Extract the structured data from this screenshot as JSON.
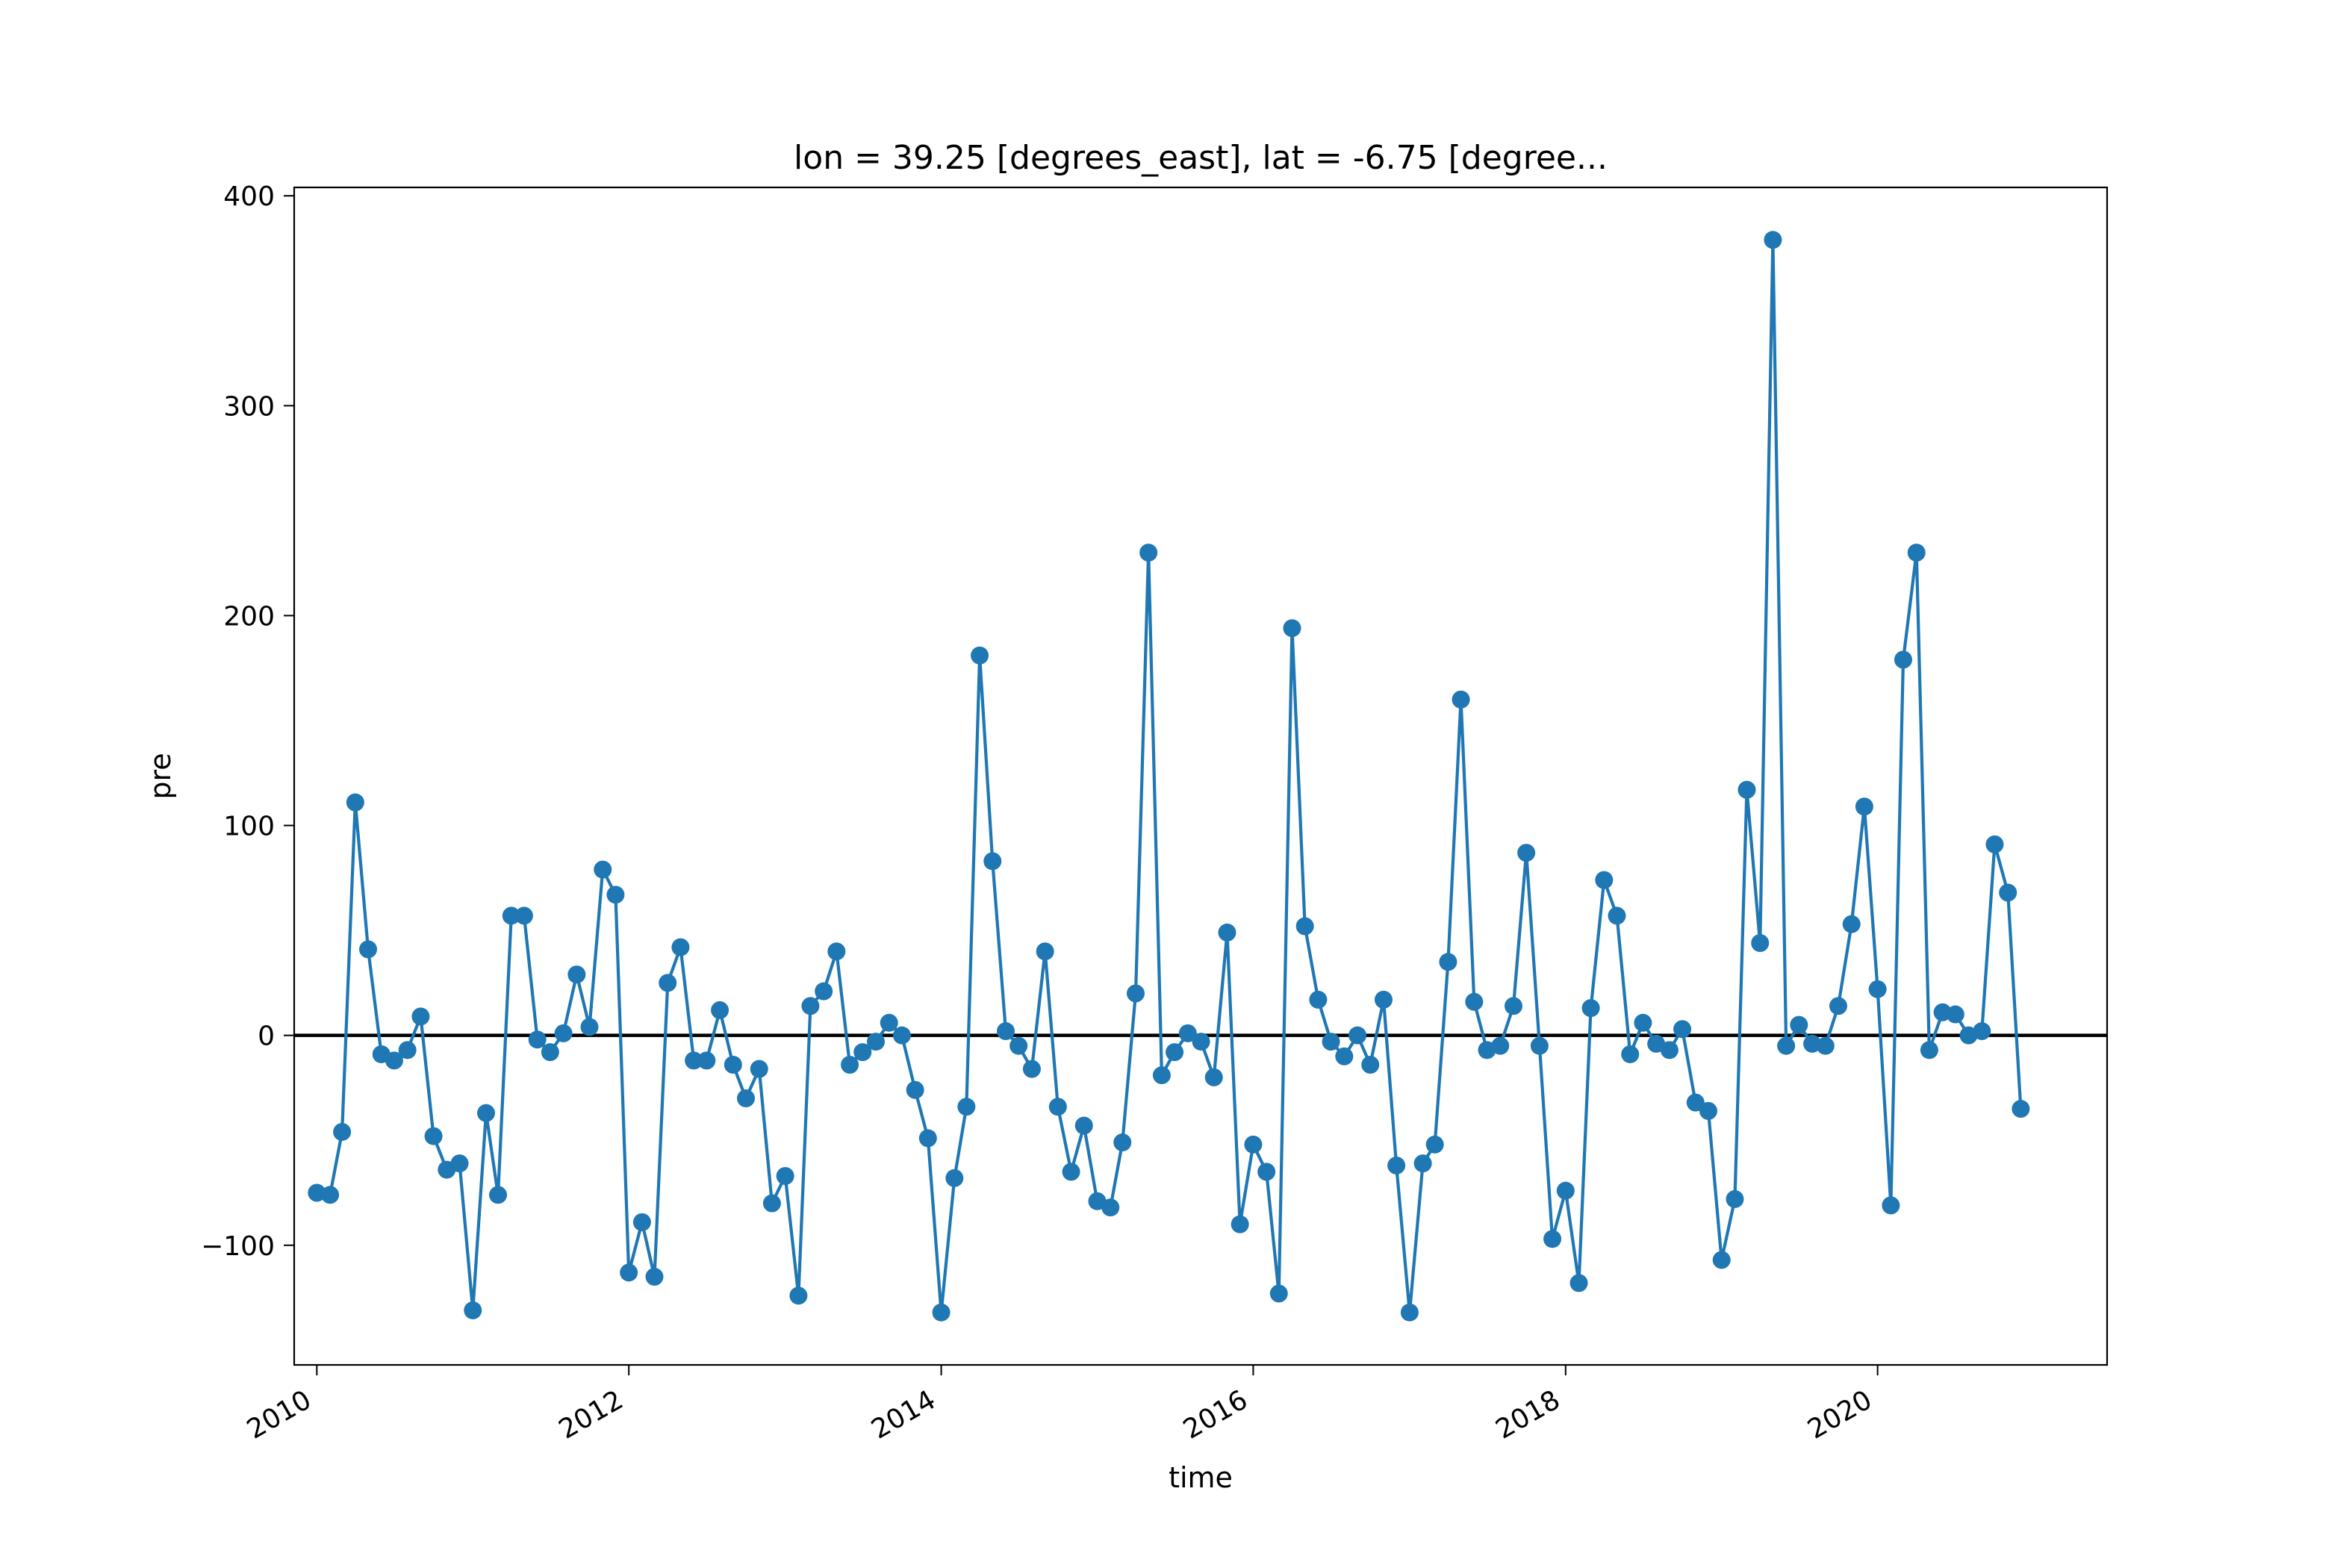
{
  "chart_data": {
    "type": "line",
    "title": "lon = 39.25 [degrees_east], lat = -6.75 [degree...",
    "xlabel": "time",
    "ylabel": "pre",
    "xlim": [
      "2009-11-09",
      "2021-06-21"
    ],
    "ylim": [
      -157,
      404
    ],
    "x_ticks": [
      "2010",
      "2012",
      "2014",
      "2016",
      "2018",
      "2020"
    ],
    "y_ticks": [
      -100,
      0,
      100,
      200,
      300,
      400
    ],
    "y_tick_labels": [
      "−100",
      "0",
      "100",
      "200",
      "300",
      "400"
    ],
    "reference_line": {
      "y": 0,
      "color": "#000000"
    },
    "grid": false,
    "series": [
      {
        "color": "#1f77b4",
        "marker": "circle",
        "x": [
          "2010-01",
          "2010-02",
          "2010-03",
          "2010-04",
          "2010-05",
          "2010-06",
          "2010-07",
          "2010-08",
          "2010-09",
          "2010-10",
          "2010-11",
          "2010-12",
          "2011-01",
          "2011-02",
          "2011-03",
          "2011-04",
          "2011-05",
          "2011-06",
          "2011-07",
          "2011-08",
          "2011-09",
          "2011-10",
          "2011-11",
          "2011-12",
          "2012-01",
          "2012-02",
          "2012-03",
          "2012-04",
          "2012-05",
          "2012-06",
          "2012-07",
          "2012-08",
          "2012-09",
          "2012-10",
          "2012-11",
          "2012-12",
          "2013-01",
          "2013-02",
          "2013-03",
          "2013-04",
          "2013-05",
          "2013-06",
          "2013-07",
          "2013-08",
          "2013-09",
          "2013-10",
          "2013-11",
          "2013-12",
          "2014-01",
          "2014-02",
          "2014-03",
          "2014-04",
          "2014-05",
          "2014-06",
          "2014-07",
          "2014-08",
          "2014-09",
          "2014-10",
          "2014-11",
          "2014-12",
          "2015-01",
          "2015-02",
          "2015-03",
          "2015-04",
          "2015-05",
          "2015-06",
          "2015-07",
          "2015-08",
          "2015-09",
          "2015-10",
          "2015-11",
          "2015-12",
          "2016-01",
          "2016-02",
          "2016-03",
          "2016-04",
          "2016-05",
          "2016-06",
          "2016-07",
          "2016-08",
          "2016-09",
          "2016-10",
          "2016-11",
          "2016-12",
          "2017-01",
          "2017-02",
          "2017-03",
          "2017-04",
          "2017-05",
          "2017-06",
          "2017-07",
          "2017-08",
          "2017-09",
          "2017-10",
          "2017-11",
          "2017-12",
          "2018-01",
          "2018-02",
          "2018-03",
          "2018-04",
          "2018-05",
          "2018-06",
          "2018-07",
          "2018-08",
          "2018-09",
          "2018-10",
          "2018-11",
          "2018-12",
          "2019-01",
          "2019-02",
          "2019-03",
          "2019-04",
          "2019-05",
          "2019-06",
          "2019-07",
          "2019-08",
          "2019-09",
          "2019-10",
          "2019-11",
          "2019-12",
          "2020-01",
          "2020-02",
          "2020-03",
          "2020-04",
          "2020-05",
          "2020-06",
          "2020-07",
          "2020-08",
          "2020-09",
          "2020-10",
          "2020-11",
          "2020-12"
        ],
        "y": [
          -75,
          -76,
          -46,
          111,
          41,
          -9,
          -12,
          -7,
          9,
          -48,
          -64,
          -61,
          -131,
          -37,
          -76,
          57,
          57,
          -2,
          -8,
          1,
          29,
          4,
          79,
          67,
          -113,
          -89,
          -115,
          25,
          42,
          -12,
          -12,
          12,
          -14,
          -30,
          -16,
          -80,
          -67,
          -124,
          14,
          21,
          40,
          -14,
          -8,
          -3,
          6,
          0,
          -26,
          -49,
          -132,
          -68,
          -34,
          181,
          83,
          2,
          -5,
          -16,
          40,
          -34,
          -65,
          -43,
          -79,
          -82,
          -51,
          20,
          230,
          -19,
          -8,
          1,
          -3,
          -20,
          49,
          -90,
          -52,
          -65,
          -123,
          194,
          52,
          17,
          -3,
          -10,
          0,
          -14,
          17,
          -62,
          -132,
          -61,
          -52,
          35,
          160,
          16,
          -7,
          -5,
          14,
          87,
          -5,
          -97,
          -74,
          -118,
          13,
          74,
          57,
          -9,
          6,
          -4,
          -7,
          3,
          -32,
          -36,
          -107,
          -78,
          117,
          44,
          379,
          -5,
          5,
          -4,
          -5,
          14,
          53,
          109,
          22,
          -81,
          179,
          230,
          -7,
          11,
          10,
          0,
          2,
          91,
          68,
          -35
        ]
      }
    ]
  }
}
